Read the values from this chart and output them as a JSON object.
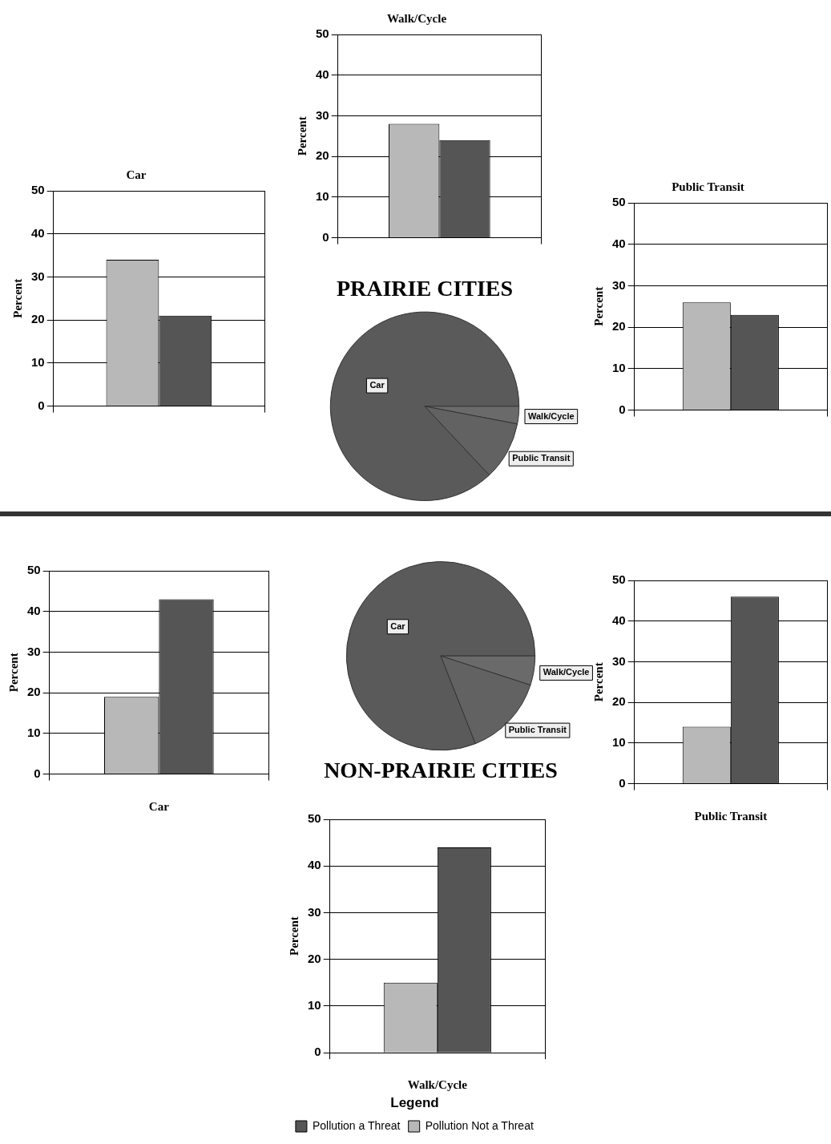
{
  "chart_data": [
    {
      "type": "bar",
      "title": "Walk/Cycle",
      "ylabel": "Percent",
      "categories": [
        null
      ],
      "series": [
        {
          "color": "#b8b8b8",
          "values": [
            28
          ]
        },
        {
          "color": "#555555",
          "values": [
            24
          ]
        }
      ],
      "ylim": [
        0,
        50
      ],
      "yticks": [
        0,
        10,
        20,
        30,
        40,
        50
      ],
      "grid": true
    },
    {
      "type": "bar",
      "title": "Car",
      "ylabel": "Percent",
      "categories": [
        null
      ],
      "series": [
        {
          "color": "#b8b8b8",
          "values": [
            34
          ]
        },
        {
          "color": "#555555",
          "values": [
            21
          ]
        }
      ],
      "ylim": [
        0,
        50
      ],
      "yticks": [
        0,
        10,
        20,
        30,
        40,
        50
      ],
      "grid": true
    },
    {
      "type": "bar",
      "title": "Public Transit",
      "ylabel": "Percent",
      "categories": [
        null
      ],
      "series": [
        {
          "color": "#b8b8b8",
          "values": [
            26
          ]
        },
        {
          "color": "#555555",
          "values": [
            23
          ]
        }
      ],
      "ylim": [
        0,
        50
      ],
      "yticks": [
        0,
        10,
        20,
        30,
        40,
        50
      ],
      "grid": true
    },
    {
      "type": "pie",
      "title": "PRAIRIE CITIES",
      "categories": [
        "Car",
        "Walk/Cycle",
        "Public Transit"
      ],
      "values": [
        87,
        3,
        10
      ],
      "colors": [
        "#5a5a5a",
        "#6a6a6a",
        "#626262"
      ]
    },
    {
      "type": "pie",
      "title": "NON-PRAIRIE CITIES",
      "categories": [
        "Car",
        "Walk/Cycle",
        "Public Transit"
      ],
      "values": [
        81,
        5,
        14
      ],
      "colors": [
        "#5a5a5a",
        "#6a6a6a",
        "#626262"
      ]
    },
    {
      "type": "bar",
      "xlabel": "Car",
      "ylabel": "Percent",
      "categories": [
        null
      ],
      "series": [
        {
          "color": "#b8b8b8",
          "values": [
            19
          ]
        },
        {
          "color": "#555555",
          "values": [
            43
          ]
        }
      ],
      "ylim": [
        0,
        50
      ],
      "yticks": [
        0,
        10,
        20,
        30,
        40,
        50
      ],
      "grid": true
    },
    {
      "type": "bar",
      "xlabel": "Public Transit",
      "ylabel": "Percent",
      "categories": [
        null
      ],
      "series": [
        {
          "color": "#b8b8b8",
          "values": [
            14
          ]
        },
        {
          "color": "#555555",
          "values": [
            46
          ]
        }
      ],
      "ylim": [
        0,
        50
      ],
      "yticks": [
        0,
        10,
        20,
        30,
        40,
        50
      ],
      "grid": true
    },
    {
      "type": "bar",
      "xlabel": "Walk/Cycle",
      "ylabel": "Percent",
      "categories": [
        null
      ],
      "legend": "bottom",
      "legend_title": "Legend",
      "series": [
        {
          "name": "Pollution Not a Threat",
          "color": "#b8b8b8",
          "values": [
            15
          ]
        },
        {
          "name": "Pollution a Threat",
          "color": "#555555",
          "values": [
            44
          ]
        }
      ],
      "ylim": [
        0,
        50
      ],
      "yticks": [
        0,
        10,
        20,
        30,
        40,
        50
      ],
      "grid": true
    }
  ]
}
